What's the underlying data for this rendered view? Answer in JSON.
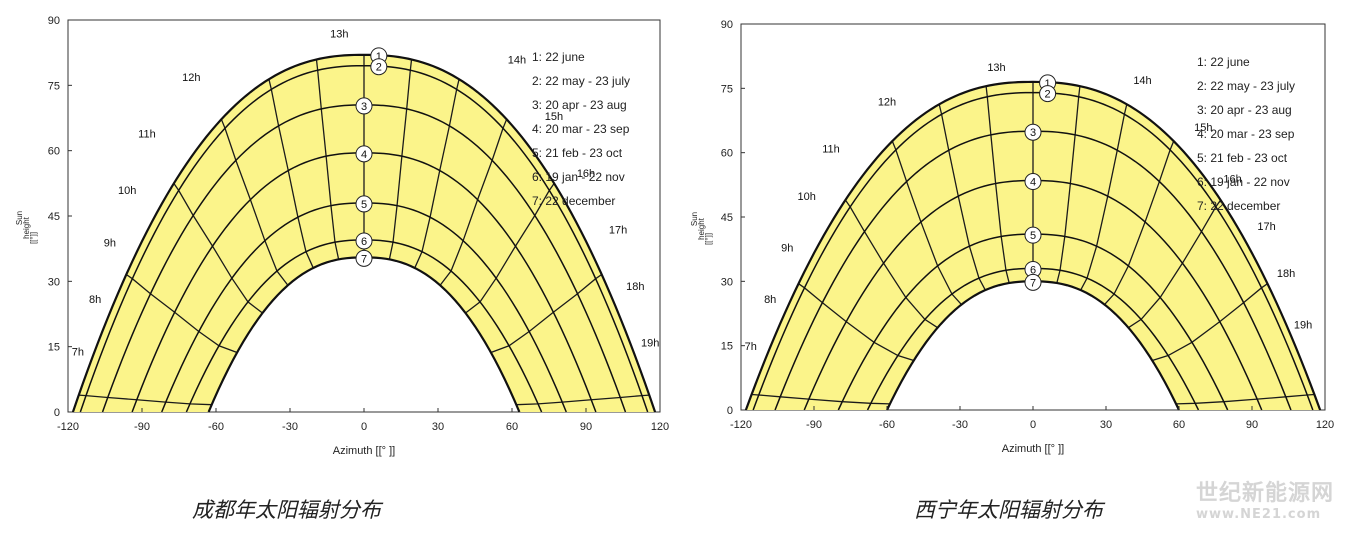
{
  "chart_data": [
    {
      "type": "line",
      "caption": "成都年太阳辐射分布",
      "xlabel": "Azimuth [[° ]]",
      "ylabel_lines": [
        "Sun",
        "height",
        "[[°]]"
      ],
      "xlim": [
        -120,
        120
      ],
      "ylim": [
        0,
        90
      ],
      "x_ticks": [
        "-120",
        "-90",
        "-60",
        "-30",
        "0",
        "30",
        "60",
        "90",
        "120"
      ],
      "y_ticks": [
        "0",
        "15",
        "30",
        "45",
        "60",
        "75",
        "90"
      ],
      "series": [
        {
          "name": "1: 22 june",
          "label": "1",
          "noon_height": 82,
          "half_width_at_horizon": 118
        },
        {
          "name": "2: 22 may - 23 july",
          "label": "2",
          "noon_height": 79.5,
          "half_width_at_horizon": 115
        },
        {
          "name": "3: 20 apr - 23 aug",
          "label": "3",
          "noon_height": 70.5,
          "half_width_at_horizon": 106
        },
        {
          "name": "4: 20 mar - 23 sep",
          "label": "4",
          "noon_height": 59.5,
          "half_width_at_horizon": 94
        },
        {
          "name": "5: 21 feb - 23 oct",
          "label": "5",
          "noon_height": 48,
          "half_width_at_horizon": 82
        },
        {
          "name": "6: 19 jan - 22 nov",
          "label": "6",
          "noon_height": 39.5,
          "half_width_at_horizon": 72
        },
        {
          "name": "7: 22 december",
          "label": "7",
          "noon_height": 35.5,
          "half_width_at_horizon": 63
        }
      ],
      "legend": [
        "1: 22 june",
        "2: 22 may - 23 july",
        "3: 20 apr - 23 aug",
        "4: 20 mar - 23 sep",
        "5: 21 feb - 23 oct",
        "6: 19 jan - 22 nov",
        "7: 22 december"
      ],
      "legend_position": "top-right",
      "hour_labels": [
        {
          "text": "7h",
          "az": -116,
          "h": 13
        },
        {
          "text": "8h",
          "az": -109,
          "h": 25
        },
        {
          "text": "9h",
          "az": -103,
          "h": 38
        },
        {
          "text": "10h",
          "az": -96,
          "h": 50
        },
        {
          "text": "11h",
          "az": -88,
          "h": 63
        },
        {
          "text": "12h",
          "az": -70,
          "h": 76
        },
        {
          "text": "13h",
          "az": -10,
          "h": 86
        },
        {
          "text": "14h",
          "az": 62,
          "h": 80
        },
        {
          "text": "15h",
          "az": 77,
          "h": 67
        },
        {
          "text": "16h",
          "az": 90,
          "h": 54
        },
        {
          "text": "17h",
          "az": 103,
          "h": 41
        },
        {
          "text": "18h",
          "az": 110,
          "h": 28
        },
        {
          "text": "19h",
          "az": 116,
          "h": 15
        }
      ]
    },
    {
      "type": "line",
      "caption": "西宁年太阳辐射分布",
      "xlabel": "Azimuth [[° ]]",
      "ylabel_lines": [
        "Sun",
        "height",
        "[[°]]"
      ],
      "xlim": [
        -120,
        120
      ],
      "ylim": [
        0,
        90
      ],
      "x_ticks": [
        "-120",
        "-90",
        "-60",
        "-30",
        "0",
        "30",
        "60",
        "90",
        "120"
      ],
      "y_ticks": [
        "0",
        "15",
        "30",
        "45",
        "60",
        "75",
        "90"
      ],
      "series": [
        {
          "name": "1: 22 june",
          "label": "1",
          "noon_height": 76.5,
          "half_width_at_horizon": 118
        },
        {
          "name": "2: 22 may - 23 july",
          "label": "2",
          "noon_height": 74,
          "half_width_at_horizon": 115
        },
        {
          "name": "3: 20 apr - 23 aug",
          "label": "3",
          "noon_height": 65,
          "half_width_at_horizon": 106
        },
        {
          "name": "4: 20 mar - 23 sep",
          "label": "4",
          "noon_height": 53.5,
          "half_width_at_horizon": 94
        },
        {
          "name": "5: 21 feb - 23 oct",
          "label": "5",
          "noon_height": 41,
          "half_width_at_horizon": 80
        },
        {
          "name": "6: 19 jan - 22 nov",
          "label": "6",
          "noon_height": 33,
          "half_width_at_horizon": 68
        },
        {
          "name": "7: 22 december",
          "label": "7",
          "noon_height": 30,
          "half_width_at_horizon": 60
        }
      ],
      "legend": [
        "1: 22 june",
        "2: 22 may - 23 july",
        "3: 20 apr - 23 aug",
        "4: 20 mar - 23 sep",
        "5: 21 feb - 23 oct",
        "6: 19 jan - 22 nov",
        "7: 22 december"
      ],
      "legend_position": "top-right",
      "hour_labels": [
        {
          "text": "7h",
          "az": -116,
          "h": 14
        },
        {
          "text": "8h",
          "az": -108,
          "h": 25
        },
        {
          "text": "9h",
          "az": -101,
          "h": 37
        },
        {
          "text": "10h",
          "az": -93,
          "h": 49
        },
        {
          "text": "11h",
          "az": -83,
          "h": 60
        },
        {
          "text": "12h",
          "az": -60,
          "h": 71
        },
        {
          "text": "13h",
          "az": -15,
          "h": 79
        },
        {
          "text": "14h",
          "az": 45,
          "h": 76
        },
        {
          "text": "15h",
          "az": 70,
          "h": 65
        },
        {
          "text": "16h",
          "az": 82,
          "h": 53
        },
        {
          "text": "17h",
          "az": 96,
          "h": 42
        },
        {
          "text": "18h",
          "az": 104,
          "h": 31
        },
        {
          "text": "19h",
          "az": 111,
          "h": 19
        }
      ]
    }
  ],
  "watermark": {
    "line1": "世纪新能源网",
    "line2": "www.NE21.com"
  }
}
